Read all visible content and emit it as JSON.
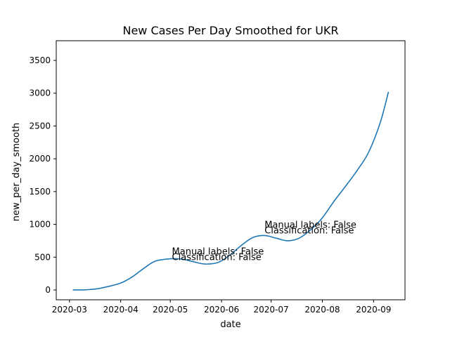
{
  "chart_data": {
    "type": "line",
    "title": "New Cases Per Day Smoothed for UKR",
    "xlabel": "date",
    "ylabel": "new_per_day_smooth",
    "xlim": [
      "2020-02-22",
      "2020-09-20"
    ],
    "ylim": [
      -150,
      3800
    ],
    "xticks": [
      "2020-03",
      "2020-04",
      "2020-05",
      "2020-06",
      "2020-07",
      "2020-08",
      "2020-09"
    ],
    "yticks": [
      0,
      500,
      1000,
      1500,
      2000,
      2500,
      3000,
      3500
    ],
    "grid": false,
    "line_color": "#1f77b4",
    "series": [
      {
        "x": [
          "2020-03-03",
          "2020-03-10",
          "2020-03-17",
          "2020-03-24",
          "2020-04-01",
          "2020-04-08",
          "2020-04-15",
          "2020-04-22",
          "2020-05-01",
          "2020-05-08",
          "2020-05-15",
          "2020-05-22",
          "2020-05-30",
          "2020-06-06",
          "2020-06-13",
          "2020-06-20",
          "2020-06-27",
          "2020-07-04",
          "2020-07-11",
          "2020-07-18",
          "2020-07-25",
          "2020-08-01",
          "2020-08-08",
          "2020-08-15",
          "2020-08-22",
          "2020-08-29",
          "2020-09-05",
          "2020-09-10"
        ],
        "y": [
          0,
          2,
          15,
          50,
          105,
          200,
          330,
          440,
          475,
          470,
          430,
          395,
          420,
          530,
          680,
          800,
          830,
          790,
          750,
          790,
          920,
          1100,
          1350,
          1580,
          1820,
          2100,
          2550,
          3020
        ]
      }
    ],
    "annotations": [
      {
        "date": "2020-05-02",
        "y": 540,
        "lines": [
          "Manual labels: False",
          "Classification: False"
        ]
      },
      {
        "date": "2020-06-27",
        "y": 945,
        "lines": [
          "Manual labels: False",
          "Classification: False"
        ]
      }
    ]
  }
}
